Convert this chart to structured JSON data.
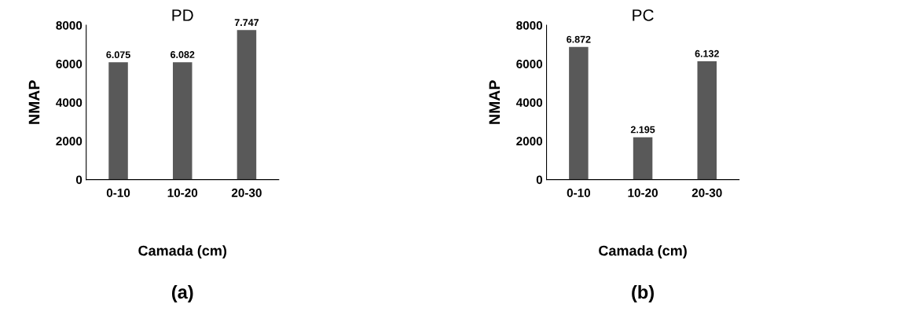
{
  "chart_data": [
    {
      "type": "bar",
      "title": "PD",
      "xlabel": "Camada (cm)",
      "ylabel": "NMAP",
      "categories": [
        "0-10",
        "10-20",
        "20-30"
      ],
      "values": [
        6075,
        6082,
        7747
      ],
      "value_labels": [
        "6.075",
        "6.082",
        "7.747"
      ],
      "color": "#595959",
      "ylim": [
        0,
        8000
      ],
      "yticks": [
        0,
        2000,
        4000,
        6000,
        8000
      ],
      "grid": false,
      "annotations": [
        "(a)"
      ]
    },
    {
      "type": "bar",
      "title": "PC",
      "xlabel": "Camada (cm)",
      "ylabel": "NMAP",
      "categories": [
        "0-10",
        "10-20",
        "20-30"
      ],
      "values": [
        6872,
        2195,
        6132
      ],
      "value_labels": [
        "6.872",
        "2.195",
        "6.132"
      ],
      "color": "#595959",
      "ylim": [
        0,
        8000
      ],
      "yticks": [
        0,
        2000,
        4000,
        6000,
        8000
      ],
      "grid": false,
      "annotations": [
        "(b)"
      ]
    }
  ]
}
